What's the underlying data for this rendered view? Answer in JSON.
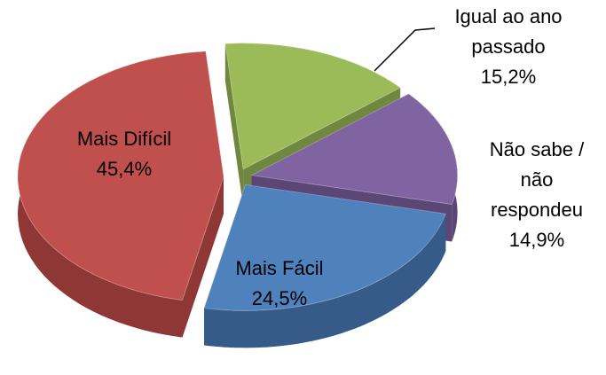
{
  "chart_data": {
    "type": "pie",
    "categories": [
      "Igual ao ano passado",
      "Não sabe / não respondeu",
      "Mais Fácil",
      "Mais Difícil"
    ],
    "values": [
      15.2,
      14.9,
      24.5,
      45.4
    ],
    "value_labels": [
      "15,2%",
      "14,9%",
      "24,5%",
      "45,4%"
    ],
    "colors": [
      "#9bbb59",
      "#8064a2",
      "#4f81bd",
      "#c0504d"
    ],
    "side_colors": [
      "#6f873e",
      "#5b4676",
      "#365b88",
      "#8e3734"
    ]
  }
}
